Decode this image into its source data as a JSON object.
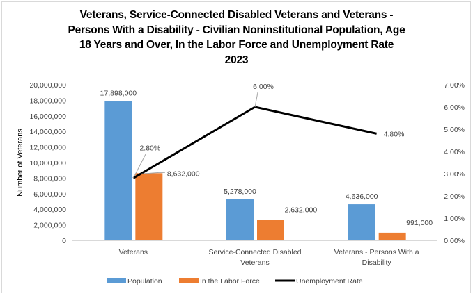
{
  "chart_data": {
    "type": "bar",
    "title_lines": [
      "Veterans, Service-Connected Disabled Veterans and Veterans -",
      "Persons With a Disability - Civilian Noninstitutional Population, Age",
      "18 Years and Over, In the Labor Force and Unemployment Rate",
      "2023"
    ],
    "categories": [
      [
        "Veterans"
      ],
      [
        "Service-Connected Disabled",
        "Veterans"
      ],
      [
        "Veterans - Persons With a",
        "Disability"
      ]
    ],
    "series": [
      {
        "name": "Population",
        "type": "bar",
        "axis": "left",
        "color": "#5b9bd5",
        "values": [
          17898000,
          5278000,
          4636000
        ],
        "labels": [
          "17,898,000",
          "5,278,000",
          "4,636,000"
        ]
      },
      {
        "name": "In the Labor Force",
        "type": "bar",
        "axis": "left",
        "color": "#ed7d31",
        "values": [
          8632000,
          2632000,
          991000
        ],
        "labels": [
          "8,632,000",
          "2,632,000",
          "991,000"
        ]
      },
      {
        "name": "Unemployment Rate",
        "type": "line",
        "axis": "right",
        "color": "#000000",
        "values": [
          2.8,
          6.0,
          4.8
        ],
        "labels": [
          "2.80%",
          "6.00%",
          "4.80%"
        ]
      }
    ],
    "ylabel": "Number of Veterans",
    "ylim": [
      0,
      20000000
    ],
    "yticks": [
      "0",
      "2,000,000",
      "4,000,000",
      "6,000,000",
      "8,000,000",
      "10,000,000",
      "12,000,000",
      "14,000,000",
      "16,000,000",
      "18,000,000",
      "20,000,000"
    ],
    "y2lim": [
      0,
      7
    ],
    "y2ticks": [
      "0.00%",
      "1.00%",
      "2.00%",
      "3.00%",
      "4.00%",
      "5.00%",
      "6.00%",
      "7.00%"
    ],
    "grid": false,
    "legend": "bottom"
  }
}
